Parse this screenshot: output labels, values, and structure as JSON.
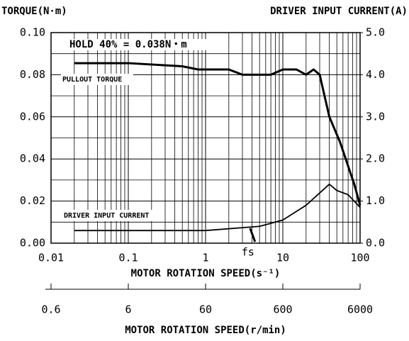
{
  "chart_data": {
    "type": "line",
    "y_label": "TORQUE(N·m)",
    "y2_label": "DRIVER INPUT CURRENT(A)",
    "x_label": "MOTOR ROTATION SPEED(s⁻¹)",
    "x2_label": "MOTOR ROTATION SPEED(r/min)",
    "xscale": "log",
    "xlim": [
      0.01,
      100
    ],
    "xticks": [
      0.01,
      0.1,
      1,
      10,
      100
    ],
    "x2lim": [
      0.6,
      6000
    ],
    "x2ticks": [
      0.6,
      6,
      60,
      600,
      6000
    ],
    "ylim": [
      0,
      0.1
    ],
    "yticks": [
      {
        "value": 0,
        "label": "0.00"
      },
      {
        "value": 0.02,
        "label": "0.02"
      },
      {
        "value": 0.04,
        "label": "0.04"
      },
      {
        "value": 0.06,
        "label": "0.06"
      },
      {
        "value": 0.08,
        "label": "0.08"
      },
      {
        "value": 0.1,
        "label": "0.10"
      }
    ],
    "y2lim": [
      0,
      5
    ],
    "y2ticks": [
      {
        "value": 0,
        "label": "0.0"
      },
      {
        "value": 1,
        "label": "1.0"
      },
      {
        "value": 2,
        "label": "2.0"
      },
      {
        "value": 3,
        "label": "3.0"
      },
      {
        "value": 4,
        "label": "4.0"
      },
      {
        "value": 5,
        "label": "5.0"
      }
    ],
    "grid": true,
    "annotations": [
      {
        "text": "HOLD 40% = 0.038N・m"
      },
      {
        "text": "fs",
        "x": 4.1
      }
    ],
    "series": [
      {
        "name": "PULLOUT TORQUE",
        "color": "#000000",
        "x": [
          0.02,
          0.1,
          0.5,
          0.8,
          2,
          3,
          7,
          10,
          15,
          20,
          25,
          30,
          40,
          55,
          84,
          100
        ],
        "values": [
          0.0855,
          0.0855,
          0.084,
          0.0825,
          0.0825,
          0.08,
          0.08,
          0.0825,
          0.0825,
          0.08,
          0.0825,
          0.08,
          0.06,
          0.048,
          0.028,
          0.018
        ]
      },
      {
        "name": "DRIVER INPUT CURRENT",
        "color": "#000000",
        "axis": "y2",
        "x": [
          0.02,
          1,
          5,
          8,
          10,
          20,
          40,
          50,
          70,
          100
        ],
        "values": [
          0.3,
          0.3,
          0.4,
          0.5,
          0.55,
          0.9,
          1.4,
          1.25,
          1.15,
          0.85
        ]
      }
    ]
  }
}
